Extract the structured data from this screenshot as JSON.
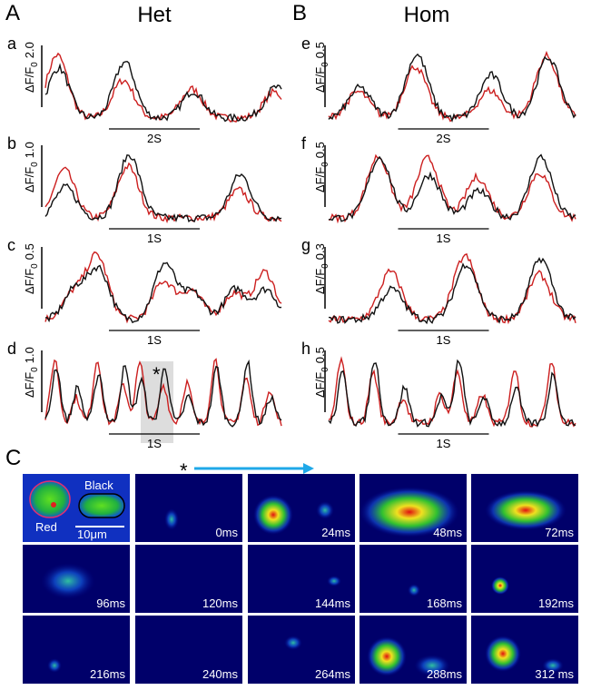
{
  "header": {
    "left_letter": "A",
    "left_title": "Het",
    "right_letter": "B",
    "right_title": "Hom"
  },
  "panels": [
    {
      "letter": "a",
      "ylabel": "ΔF/F",
      "sub": "0",
      "scale": "2.0",
      "time": "2S"
    },
    {
      "letter": "b",
      "ylabel": "ΔF/F",
      "sub": "0",
      "scale": "1.0",
      "time": "1S"
    },
    {
      "letter": "c",
      "ylabel": "ΔF/F",
      "sub": "0",
      "scale": "0.5",
      "time": "1S"
    },
    {
      "letter": "d",
      "ylabel": "ΔF/F",
      "sub": "0",
      "scale": "1.0",
      "time": "1S",
      "mark": "*"
    },
    {
      "letter": "e",
      "ylabel": "ΔF/F",
      "sub": "0",
      "scale": "0.5",
      "time": "2S"
    },
    {
      "letter": "f",
      "ylabel": "ΔF/F",
      "sub": "0",
      "scale": "0.5",
      "time": "1S"
    },
    {
      "letter": "g",
      "ylabel": "ΔF/F",
      "sub": "0",
      "scale": "0.3",
      "time": "1S"
    },
    {
      "letter": "h",
      "ylabel": "ΔF/F",
      "sub": "0",
      "scale": "0.5",
      "time": "1S"
    }
  ],
  "section_c": {
    "letter": "C",
    "start_mark": "*",
    "cell_labels": {
      "black": "Black",
      "red": "Red",
      "scale": "10μm"
    },
    "times": [
      "0ms",
      "24ms",
      "48ms",
      "72ms",
      "96ms",
      "120ms",
      "144ms",
      "168ms",
      "192ms",
      "216ms",
      "240ms",
      "264ms",
      "288ms",
      "312 ms"
    ]
  }
}
